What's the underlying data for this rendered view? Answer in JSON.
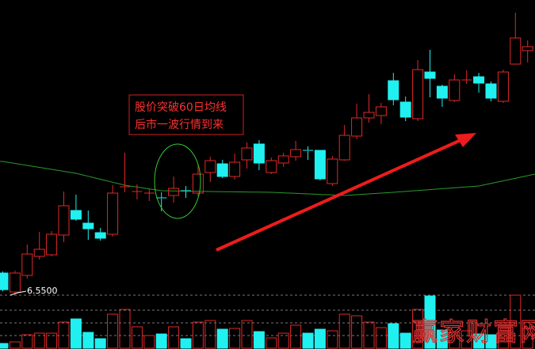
{
  "chart_data": {
    "type": "candlestick",
    "title": "",
    "xlabel": "",
    "ylabel": "",
    "price_label": "6.5500",
    "colors": {
      "background": "#000000",
      "up": "#e02828",
      "down": "#20f0f0",
      "ma60": "#2a9a2a",
      "annotation": "#ff3030",
      "arrow": "#ee1c1c",
      "ellipse": "#33cc33",
      "grid": "#777777"
    },
    "grid": "dashed horizontal lines in volume panel",
    "candles": [
      {
        "o": 6.82,
        "h": 6.84,
        "l": 6.59,
        "c": 6.61
      },
      {
        "o": 6.58,
        "h": 6.85,
        "l": 6.55,
        "c": 6.82
      },
      {
        "o": 6.79,
        "h": 7.18,
        "l": 6.75,
        "c": 7.06
      },
      {
        "o": 7.03,
        "h": 7.34,
        "l": 6.99,
        "c": 7.12
      },
      {
        "o": 7.05,
        "h": 7.35,
        "l": 7.03,
        "c": 7.31
      },
      {
        "o": 7.3,
        "h": 7.85,
        "l": 7.21,
        "c": 7.67
      },
      {
        "o": 7.61,
        "h": 7.81,
        "l": 7.48,
        "c": 7.5
      },
      {
        "o": 7.45,
        "h": 7.61,
        "l": 7.24,
        "c": 7.38
      },
      {
        "o": 7.33,
        "h": 7.39,
        "l": 7.23,
        "c": 7.26
      },
      {
        "o": 7.31,
        "h": 7.93,
        "l": 7.28,
        "c": 7.83
      },
      {
        "o": 7.9,
        "h": 8.34,
        "l": 7.84,
        "c": 7.91
      },
      {
        "o": 7.85,
        "h": 7.94,
        "l": 7.75,
        "c": 7.85
      },
      {
        "o": 7.83,
        "h": 7.88,
        "l": 7.73,
        "c": 7.83
      },
      {
        "o": 7.77,
        "h": 7.84,
        "l": 7.6,
        "c": 7.76
      },
      {
        "o": 7.8,
        "h": 8.04,
        "l": 7.71,
        "c": 7.89
      },
      {
        "o": 7.86,
        "h": 7.92,
        "l": 7.77,
        "c": 7.85
      },
      {
        "o": 7.83,
        "h": 8.18,
        "l": 7.79,
        "c": 8.07
      },
      {
        "o": 8.09,
        "h": 8.29,
        "l": 7.97,
        "c": 8.24
      },
      {
        "o": 8.2,
        "h": 8.25,
        "l": 8.02,
        "c": 8.04
      },
      {
        "o": 8.04,
        "h": 8.33,
        "l": 8.0,
        "c": 8.22
      },
      {
        "o": 8.25,
        "h": 8.47,
        "l": 8.14,
        "c": 8.4
      },
      {
        "o": 8.45,
        "h": 8.5,
        "l": 8.12,
        "c": 8.21
      },
      {
        "o": 8.09,
        "h": 8.28,
        "l": 8.07,
        "c": 8.24
      },
      {
        "o": 8.21,
        "h": 8.34,
        "l": 8.16,
        "c": 8.3
      },
      {
        "o": 8.29,
        "h": 8.49,
        "l": 8.24,
        "c": 8.38
      },
      {
        "o": 8.37,
        "h": 8.42,
        "l": 8.25,
        "c": 8.36
      },
      {
        "o": 8.37,
        "h": 8.37,
        "l": 7.99,
        "c": 8.01
      },
      {
        "o": 7.95,
        "h": 8.3,
        "l": 7.92,
        "c": 8.26
      },
      {
        "o": 8.25,
        "h": 8.69,
        "l": 8.24,
        "c": 8.56
      },
      {
        "o": 8.55,
        "h": 8.96,
        "l": 8.51,
        "c": 8.78
      },
      {
        "o": 8.78,
        "h": 9.08,
        "l": 8.72,
        "c": 8.85
      },
      {
        "o": 8.81,
        "h": 8.97,
        "l": 8.7,
        "c": 8.92
      },
      {
        "o": 9.25,
        "h": 9.35,
        "l": 8.94,
        "c": 9.01
      },
      {
        "o": 8.98,
        "h": 9.05,
        "l": 8.74,
        "c": 8.79
      },
      {
        "o": 8.77,
        "h": 9.51,
        "l": 8.74,
        "c": 9.39
      },
      {
        "o": 9.36,
        "h": 9.64,
        "l": 9.04,
        "c": 9.28
      },
      {
        "o": 9.18,
        "h": 9.2,
        "l": 8.92,
        "c": 9.03
      },
      {
        "o": 9.0,
        "h": 9.33,
        "l": 8.98,
        "c": 9.26
      },
      {
        "o": 9.26,
        "h": 9.38,
        "l": 9.21,
        "c": 9.26
      },
      {
        "o": 9.3,
        "h": 9.35,
        "l": 9.1,
        "c": 9.22
      },
      {
        "o": 9.21,
        "h": 9.24,
        "l": 8.99,
        "c": 9.03
      },
      {
        "o": 8.99,
        "h": 9.39,
        "l": 8.97,
        "c": 9.36
      },
      {
        "o": 9.46,
        "h": 10.11,
        "l": 9.46,
        "c": 9.79
      },
      {
        "o": 9.63,
        "h": 9.76,
        "l": 9.48,
        "c": 9.68
      }
    ],
    "volume_relative": [
      6,
      8,
      17,
      19,
      19,
      33,
      37,
      20,
      12,
      43,
      49,
      27,
      16,
      18,
      27,
      12,
      33,
      35,
      24,
      25,
      35,
      21,
      13,
      19,
      29,
      19,
      24,
      22,
      43,
      41,
      33,
      26,
      31,
      19,
      49,
      66,
      23,
      20,
      22,
      18,
      17,
      27,
      67,
      25
    ],
    "ma60": {
      "name_in_annotation": "60日均线",
      "points_by_candle_index": [
        [
          0,
          8.23
        ],
        [
          6,
          8.08
        ],
        [
          10,
          7.93
        ],
        [
          13,
          7.86
        ],
        [
          17,
          7.85
        ],
        [
          22,
          7.84
        ],
        [
          28,
          7.8
        ],
        [
          32,
          7.84
        ],
        [
          39,
          7.92
        ],
        [
          43,
          8.05
        ]
      ]
    },
    "annotation": {
      "line1": "股价突破60日均线",
      "line2": "后市一波行情到来"
    },
    "watermark": "赢家财富网"
  }
}
